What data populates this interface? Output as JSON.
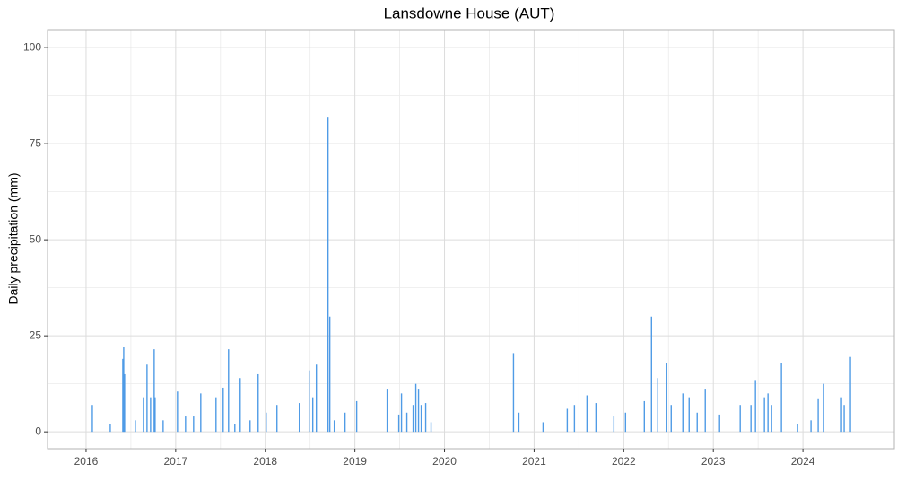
{
  "chart_data": {
    "type": "bar",
    "title": "Lansdowne House (AUT)",
    "y_label": "Daily precipitation (mm)",
    "color": "#4f9be6",
    "grid": true,
    "x": [
      2016.07,
      2016.27,
      2016.41,
      2016.42,
      2016.43,
      2016.55,
      2016.64,
      2016.68,
      2016.72,
      2016.76,
      2016.77,
      2016.86,
      2017.02,
      2017.11,
      2017.2,
      2017.28,
      2017.45,
      2017.53,
      2017.59,
      2017.66,
      2017.72,
      2017.83,
      2017.92,
      2018.01,
      2018.13,
      2018.38,
      2018.49,
      2018.53,
      2018.57,
      2018.7,
      2018.72,
      2018.77,
      2018.89,
      2019.02,
      2019.36,
      2019.49,
      2019.52,
      2019.58,
      2019.65,
      2019.68,
      2019.71,
      2019.74,
      2019.79,
      2019.85,
      2020.77,
      2020.83,
      2021.1,
      2021.37,
      2021.45,
      2021.59,
      2021.69,
      2021.89,
      2022.02,
      2022.23,
      2022.31,
      2022.38,
      2022.48,
      2022.53,
      2022.66,
      2022.73,
      2022.82,
      2022.91,
      2023.07,
      2023.3,
      2023.42,
      2023.47,
      2023.57,
      2023.61,
      2023.65,
      2023.76,
      2023.94,
      2024.09,
      2024.17,
      2024.23,
      2024.43,
      2024.46,
      2024.53
    ],
    "values": [
      7,
      2,
      19,
      22,
      15,
      3,
      9,
      17.5,
      9,
      21.5,
      9,
      3,
      10.5,
      4,
      4,
      10,
      9,
      11.5,
      21.5,
      2,
      14,
      3,
      15,
      5,
      7,
      7.5,
      16,
      9,
      17.5,
      82,
      30,
      3,
      5,
      8,
      11,
      4.5,
      10,
      5,
      7,
      12.5,
      11,
      7,
      7.5,
      2.5,
      20.5,
      5,
      2.5,
      6,
      7,
      9.5,
      7.5,
      4,
      5,
      8,
      30,
      14,
      18,
      7,
      10,
      9,
      5,
      11,
      4.5,
      7,
      7,
      13.5,
      9,
      10,
      7,
      18,
      2,
      3,
      8.5,
      12.5,
      9,
      7,
      19.5
    ],
    "xlim": [
      2015.57,
      2025.02
    ],
    "xticks": [
      2016,
      2017,
      2018,
      2019,
      2020,
      2021,
      2022,
      2023,
      2024
    ],
    "ylim": [
      -4.4,
      104.7
    ],
    "yticks": [
      0,
      25,
      50,
      75,
      100
    ]
  }
}
